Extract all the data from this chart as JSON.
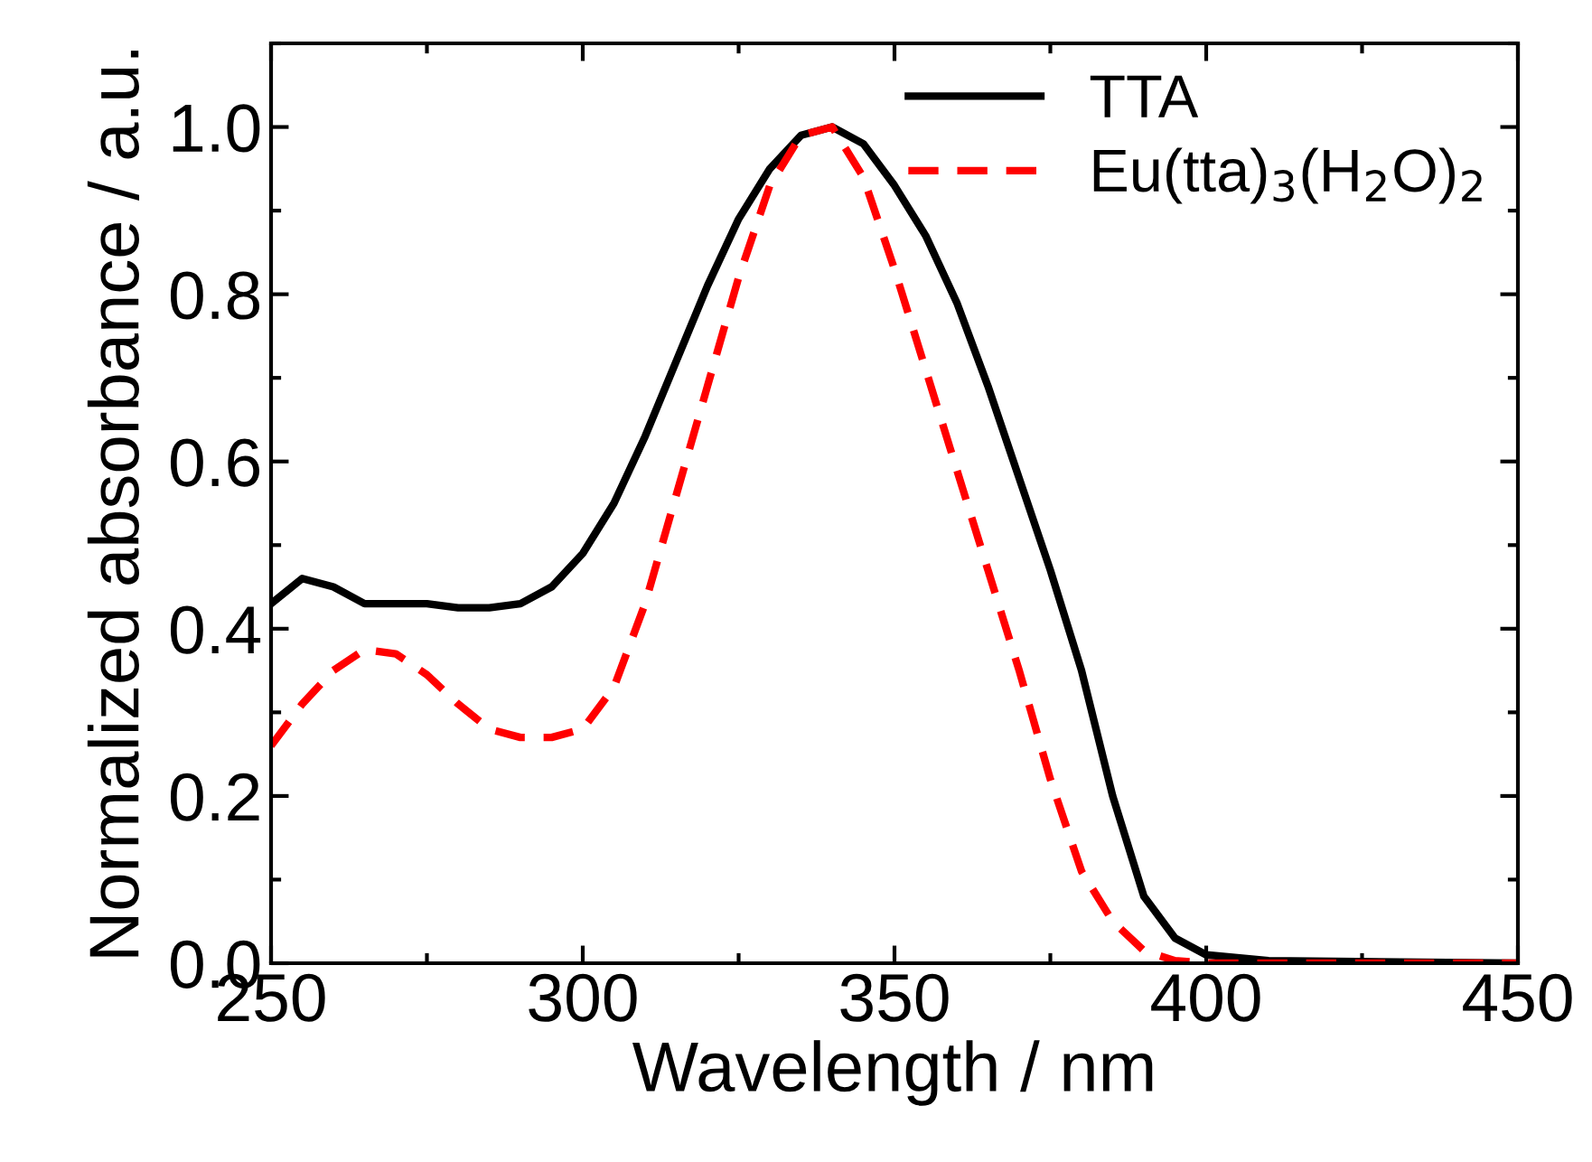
{
  "chart_data": {
    "type": "line",
    "xlabel": "Wavelength / nm",
    "ylabel": "Normalized absorbance / a.u.",
    "xlim": [
      250,
      450
    ],
    "ylim": [
      0,
      1.1
    ],
    "xticks": [
      250,
      300,
      350,
      400,
      450
    ],
    "yticks": [
      {
        "value": 0,
        "label": "0.0"
      },
      0.2,
      0.4,
      0.6,
      0.8,
      {
        "value": 1,
        "label": "1.0"
      }
    ],
    "grid": false,
    "legend": "top right",
    "marker": "none",
    "series": [
      {
        "name": "TTA",
        "color": "#000000",
        "line_style": "solid",
        "x": [
          250,
          255,
          260,
          265,
          270,
          275,
          280,
          285,
          290,
          295,
          300,
          305,
          310,
          315,
          320,
          325,
          330,
          335,
          340,
          345,
          350,
          355,
          360,
          365,
          370,
          375,
          380,
          385,
          390,
          395,
          400,
          410,
          450
        ],
        "values": [
          0.43,
          0.46,
          0.45,
          0.43,
          0.43,
          0.43,
          0.425,
          0.425,
          0.43,
          0.45,
          0.49,
          0.55,
          0.63,
          0.72,
          0.81,
          0.89,
          0.95,
          0.99,
          1.0,
          0.98,
          0.93,
          0.87,
          0.79,
          0.69,
          0.58,
          0.47,
          0.35,
          0.2,
          0.08,
          0.03,
          0.01,
          0.003,
          0.0
        ]
      },
      {
        "name": "Eu(tta)$_{3}$(H$_{2}$O)$_{2}$",
        "color": "#ff0000",
        "line_style": "dashed",
        "x": [
          250,
          255,
          260,
          265,
          270,
          275,
          280,
          285,
          290,
          295,
          300,
          305,
          310,
          315,
          320,
          325,
          330,
          335,
          340,
          345,
          350,
          355,
          360,
          365,
          370,
          375,
          380,
          385,
          390,
          395,
          400,
          450
        ],
        "values": [
          0.26,
          0.31,
          0.35,
          0.375,
          0.37,
          0.345,
          0.31,
          0.28,
          0.27,
          0.27,
          0.28,
          0.33,
          0.43,
          0.56,
          0.69,
          0.82,
          0.93,
          0.99,
          1.0,
          0.94,
          0.83,
          0.71,
          0.59,
          0.47,
          0.35,
          0.22,
          0.11,
          0.05,
          0.015,
          0.003,
          0.0,
          0.0
        ]
      }
    ]
  }
}
